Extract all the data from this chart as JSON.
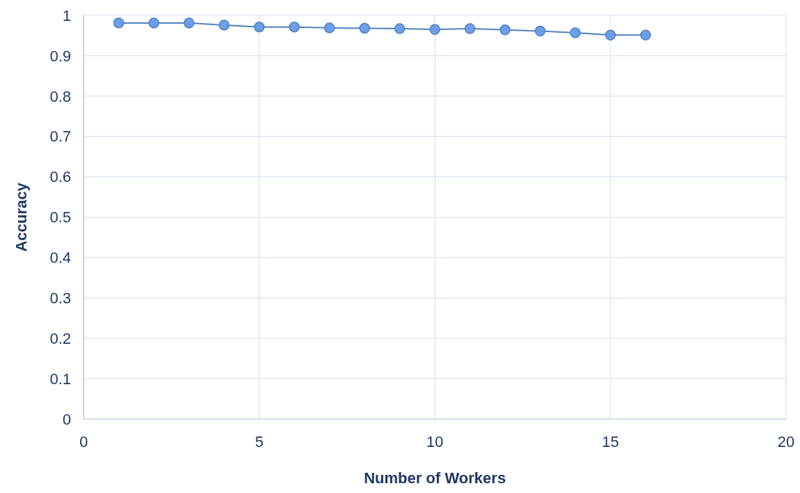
{
  "chart_data": {
    "type": "line",
    "xlabel": "Number of Workers",
    "ylabel": "Accuracy",
    "x": [
      1,
      2,
      3,
      4,
      5,
      6,
      7,
      8,
      9,
      10,
      11,
      12,
      13,
      14,
      15,
      16
    ],
    "series": [
      {
        "color": "#4f81bd",
        "values": [
          0.981,
          0.981,
          0.981,
          0.976,
          0.971,
          0.971,
          0.969,
          0.968,
          0.967,
          0.965,
          0.967,
          0.964,
          0.961,
          0.957,
          0.951,
          0.951
        ]
      }
    ],
    "xlim": [
      0,
      20
    ],
    "xticks": [
      0,
      5,
      10,
      15,
      20
    ],
    "ylim": [
      0,
      1
    ],
    "yticks": [
      0,
      0.1,
      0.2,
      0.3,
      0.4,
      0.5,
      0.6,
      0.7,
      0.8,
      0.9,
      1
    ],
    "grid": true,
    "marker": "circle",
    "line_style": "solid"
  }
}
